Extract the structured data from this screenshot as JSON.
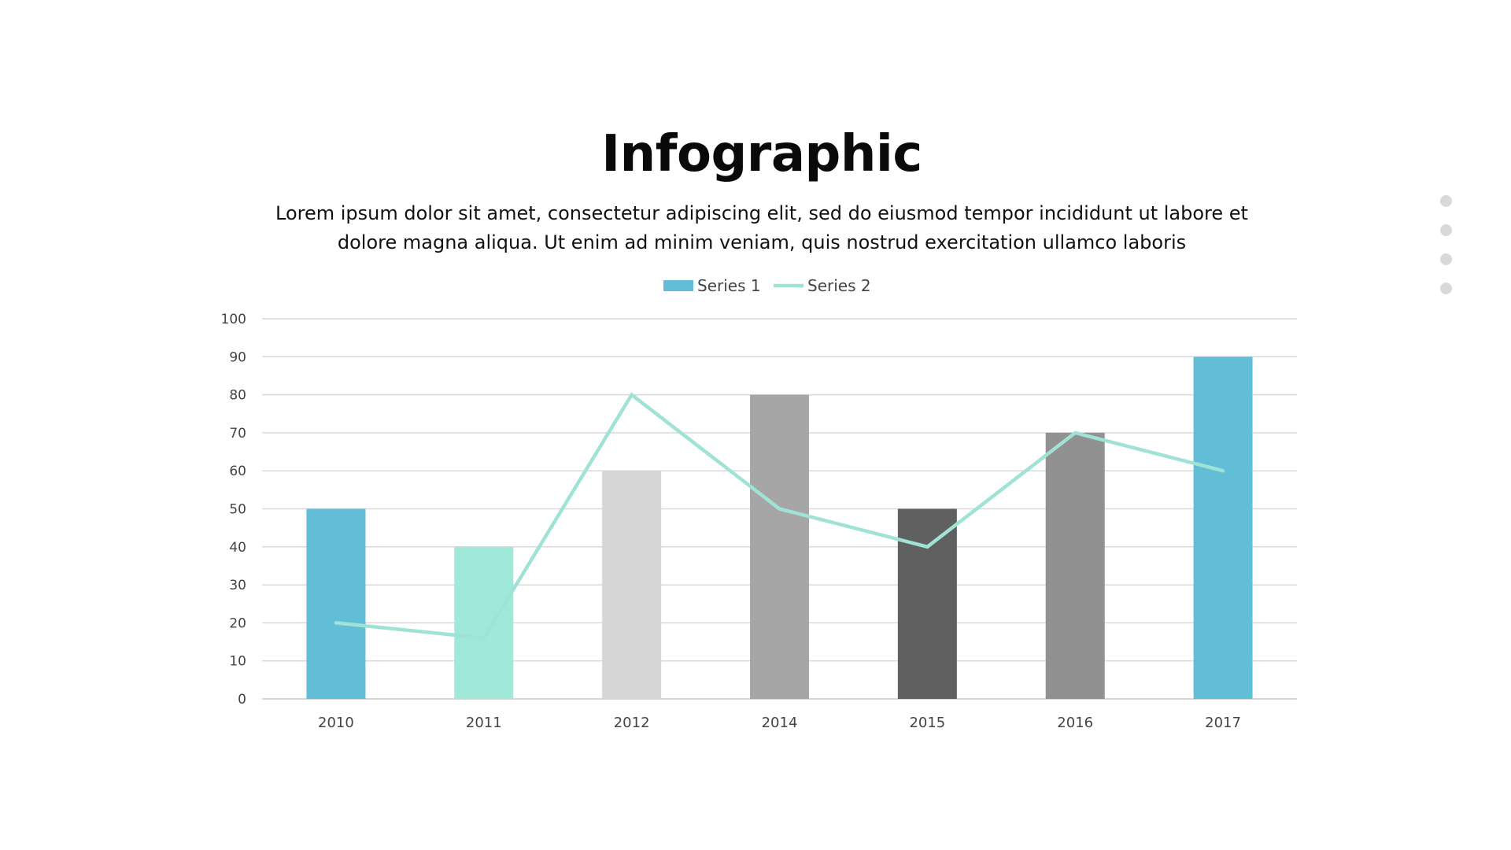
{
  "slide": {
    "title": "Infographic",
    "subtitle": "Lorem ipsum dolor sit amet, consectetur adipiscing elit, sed do eiusmod tempor incididunt ut labore et dolore magna aliqua. Ut enim ad minim veniam, quis nostrud exercitation ullamco laboris"
  },
  "nav": {
    "dot_count": 4,
    "dot_color": "#d9d9d9"
  },
  "chart_data": {
    "type": "bar",
    "categories": [
      "2010",
      "2011",
      "2012",
      "2014",
      "2015",
      "2016",
      "2017"
    ],
    "series": [
      {
        "name": "Series 1",
        "kind": "bar",
        "values": [
          50,
          40,
          60,
          80,
          50,
          70,
          90
        ],
        "colors": [
          "#62bed6",
          "#9fe8da",
          "#d6d6d6",
          "#a6a6a6",
          "#606060",
          "#919191",
          "#62bed6"
        ],
        "legend_color": "#62bed6"
      },
      {
        "name": "Series 2",
        "kind": "line",
        "values": [
          20,
          16,
          80,
          50,
          40,
          70,
          60
        ],
        "color": "#9fe3d6"
      }
    ],
    "ylim": [
      0,
      100
    ],
    "yticks": [
      0,
      10,
      20,
      30,
      40,
      50,
      60,
      70,
      80,
      90,
      100
    ],
    "grid": true,
    "legend_position": "top-center",
    "xlabel": "",
    "ylabel": ""
  }
}
